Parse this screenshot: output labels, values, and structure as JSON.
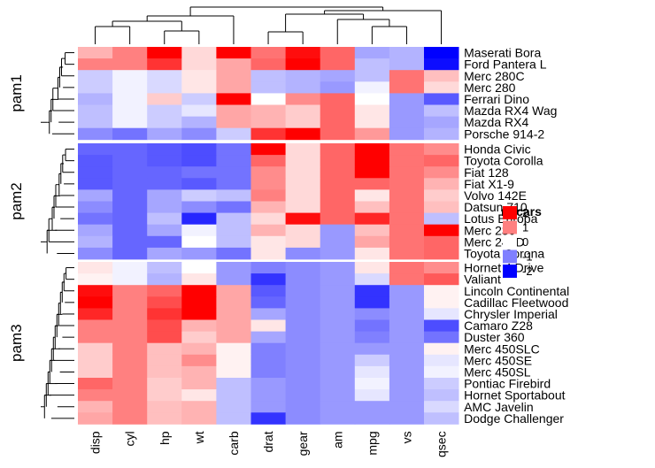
{
  "chart_data": {
    "type": "heatmap",
    "columns": [
      "disp",
      "cyl",
      "hp",
      "wt",
      "carb",
      "drat",
      "gear",
      "am",
      "mpg",
      "vs",
      "qsec"
    ],
    "groups": [
      {
        "name": "pam1",
        "rows": [
          "Maserati Bora",
          "Ford Pantera L",
          "Merc 280C",
          "Merc 280",
          "Ferrari Dino",
          "Mazda RX4 Wag",
          "Mazda RX4",
          "Porsche 914-2"
        ],
        "values": [
          [
            0.6,
            1.0,
            2.2,
            0.3,
            2.4,
            1.1,
            1.9,
            1.2,
            -0.7,
            -0.6,
            -2.4
          ],
          [
            1.0,
            1.0,
            1.6,
            0.3,
            0.7,
            1.2,
            2.0,
            1.2,
            -0.5,
            -0.6,
            -1.9
          ],
          [
            -0.4,
            -0.1,
            -0.3,
            0.2,
            0.7,
            -0.5,
            -0.6,
            -0.7,
            -0.5,
            1.1,
            0.5
          ],
          [
            -0.4,
            -0.1,
            -0.3,
            0.2,
            0.7,
            -0.5,
            -0.6,
            -0.8,
            -0.1,
            1.1,
            0.3
          ],
          [
            -0.6,
            -0.1,
            0.4,
            -0.4,
            2.5,
            0.0,
            0.9,
            1.2,
            0.0,
            -0.8,
            -1.3
          ],
          [
            -0.5,
            -0.1,
            -0.4,
            -0.2,
            0.7,
            0.6,
            0.4,
            1.2,
            0.2,
            -0.8,
            -0.5
          ],
          [
            -0.5,
            -0.1,
            -0.4,
            -0.6,
            0.7,
            0.6,
            0.4,
            1.2,
            0.2,
            -0.8,
            -0.7
          ],
          [
            -0.9,
            -1.1,
            -0.7,
            -0.9,
            -0.4,
            1.6,
            2.0,
            1.2,
            0.8,
            -0.8,
            -0.6
          ]
        ]
      },
      {
        "name": "pam2",
        "rows": [
          "Honda Civic",
          "Toyota Corolla",
          "Fiat 128",
          "Fiat X1-9",
          "Volvo 142E",
          "Datsun 710",
          "Lotus Europa",
          "Merc 230",
          "Merc 240D",
          "Toyota Corona"
        ],
        "values": [
          [
            -1.2,
            -1.2,
            -1.3,
            -1.4,
            -1.1,
            2.5,
            0.3,
            1.2,
            2.4,
            1.1,
            0.9
          ],
          [
            -1.3,
            -1.2,
            -1.3,
            -1.4,
            -1.1,
            1.2,
            0.3,
            1.2,
            2.4,
            1.1,
            1.2
          ],
          [
            -1.3,
            -1.2,
            -1.2,
            -1.1,
            -1.1,
            0.9,
            0.3,
            1.2,
            2.1,
            1.1,
            0.9
          ],
          [
            -1.3,
            -1.2,
            -1.2,
            -1.3,
            -1.1,
            0.9,
            0.3,
            1.2,
            1.2,
            1.1,
            0.6
          ],
          [
            -0.7,
            -1.2,
            -0.7,
            -0.4,
            -0.5,
            1.0,
            0.3,
            1.2,
            0.2,
            1.1,
            0.4
          ],
          [
            -0.9,
            -1.2,
            -0.7,
            -0.9,
            -1.1,
            0.6,
            0.3,
            1.2,
            0.5,
            1.1,
            0.5
          ],
          [
            -1.1,
            -1.2,
            -0.5,
            -1.7,
            -0.5,
            0.3,
            1.9,
            1.2,
            1.7,
            1.1,
            -0.5
          ],
          [
            -0.7,
            -1.2,
            -0.7,
            -0.1,
            -0.5,
            0.6,
            0.3,
            -0.8,
            0.5,
            1.1,
            2.8
          ],
          [
            -0.6,
            -1.2,
            -1.2,
            0.0,
            -0.5,
            0.2,
            0.3,
            -0.8,
            0.7,
            1.1,
            1.2
          ],
          [
            -0.9,
            -1.2,
            -0.7,
            -0.8,
            -1.1,
            0.2,
            -0.9,
            -0.8,
            0.2,
            1.1,
            1.2
          ]
        ]
      },
      {
        "name": "pam3",
        "rows": [
          "Hornet 4 Drive",
          "Valiant",
          "Lincoln Continental",
          "Cadillac Fleetwood",
          "Chrysler Imperial",
          "Camaro Z28",
          "Duster 360",
          "Merc 450SLC",
          "Merc 450SE",
          "Merc 450SL",
          "Pontiac Firebird",
          "Hornet Sportabout",
          "AMC Javelin",
          "Dodge Challenger"
        ],
        "values": [
          [
            0.2,
            -0.1,
            -0.5,
            -0.0,
            -0.8,
            -1.0,
            -0.9,
            -0.8,
            0.2,
            1.1,
            0.9
          ],
          [
            0.1,
            -0.1,
            -0.6,
            0.2,
            -0.8,
            -1.6,
            -0.9,
            -0.8,
            -0.3,
            1.1,
            1.3
          ],
          [
            1.9,
            1.0,
            1.2,
            2.3,
            0.7,
            -1.3,
            -0.9,
            -0.8,
            -1.6,
            -0.8,
            0.1
          ],
          [
            2.0,
            1.0,
            1.4,
            2.1,
            0.7,
            -1.2,
            -0.9,
            -0.8,
            -1.6,
            -0.8,
            0.1
          ],
          [
            1.7,
            1.0,
            1.6,
            2.2,
            0.7,
            -0.7,
            -0.9,
            -0.8,
            -0.9,
            -0.8,
            -0.2
          ],
          [
            1.0,
            1.0,
            1.4,
            0.6,
            0.7,
            0.2,
            -0.9,
            -0.8,
            -1.1,
            -0.8,
            -1.4
          ],
          [
            1.0,
            1.0,
            1.4,
            0.4,
            0.7,
            -0.7,
            -0.9,
            -0.8,
            -1.0,
            -0.8,
            -1.1
          ],
          [
            0.4,
            1.0,
            0.5,
            0.6,
            0.1,
            -1.0,
            -0.9,
            -0.8,
            -0.8,
            -0.8,
            0.1
          ],
          [
            0.4,
            1.0,
            0.5,
            0.9,
            0.1,
            -1.0,
            -0.9,
            -0.8,
            -0.4,
            -0.8,
            -0.2
          ],
          [
            0.4,
            1.0,
            0.5,
            0.6,
            0.1,
            -1.0,
            -0.9,
            -0.8,
            -0.2,
            -0.8,
            -0.1
          ],
          [
            1.2,
            1.0,
            0.4,
            0.6,
            -0.5,
            -0.8,
            -0.9,
            -0.8,
            -0.1,
            -0.8,
            -0.4
          ],
          [
            1.0,
            1.0,
            0.4,
            0.2,
            -0.5,
            -0.8,
            -0.9,
            -0.8,
            -0.2,
            -0.8,
            -0.5
          ],
          [
            0.6,
            1.0,
            0.5,
            0.6,
            -0.5,
            -0.8,
            -0.9,
            -0.8,
            -0.8,
            -0.8,
            -0.3
          ],
          [
            0.7,
            1.0,
            0.5,
            0.6,
            -0.5,
            -1.6,
            -0.9,
            -0.8,
            -0.8,
            -0.8,
            -0.5
          ]
        ]
      }
    ],
    "legend": {
      "title": "mtcars",
      "ticks": [
        2,
        1,
        0,
        -1,
        -2
      ],
      "placement": "right"
    },
    "color_scale": {
      "-2": "#0000ff",
      "0": "#ffffff",
      "2": "#ff0000"
    },
    "row_dendrogram": true,
    "column_dendrogram": true
  }
}
